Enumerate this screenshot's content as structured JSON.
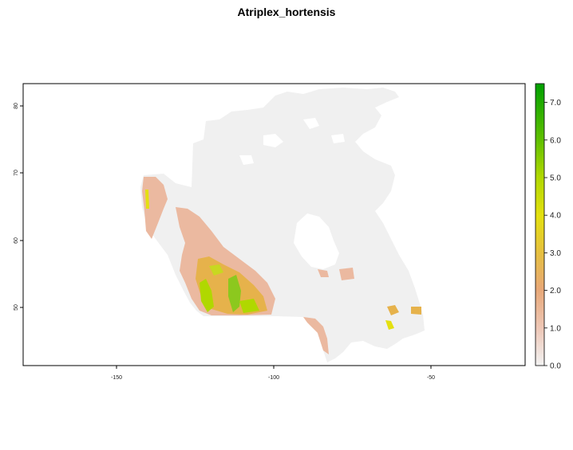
{
  "title": "Atriplex_hortensis",
  "map": {
    "x_axis": {
      "ticks": [
        "-150",
        "-100",
        "-50"
      ],
      "range": [
        -180,
        -20
      ]
    },
    "y_axis": {
      "ticks": [
        "50",
        "60",
        "70",
        "80"
      ],
      "range": [
        41,
        85
      ]
    }
  },
  "legend": {
    "ticks": [
      "0.0",
      "1.0",
      "2.0",
      "3.0",
      "4.0",
      "5.0",
      "6.0",
      "7.0"
    ],
    "range": [
      0,
      7.5
    ],
    "colors": [
      "#f2f2f2",
      "#eec8b8",
      "#e8a878",
      "#e6c040",
      "#e4e010",
      "#b0d800",
      "#60c000",
      "#00a000"
    ]
  },
  "colors": {
    "land_background": "#f0f0f0",
    "low_suitability": "#ebb9a0",
    "mid_suitability": "#e6b24b",
    "high_suitability": "#8cc81e"
  }
}
